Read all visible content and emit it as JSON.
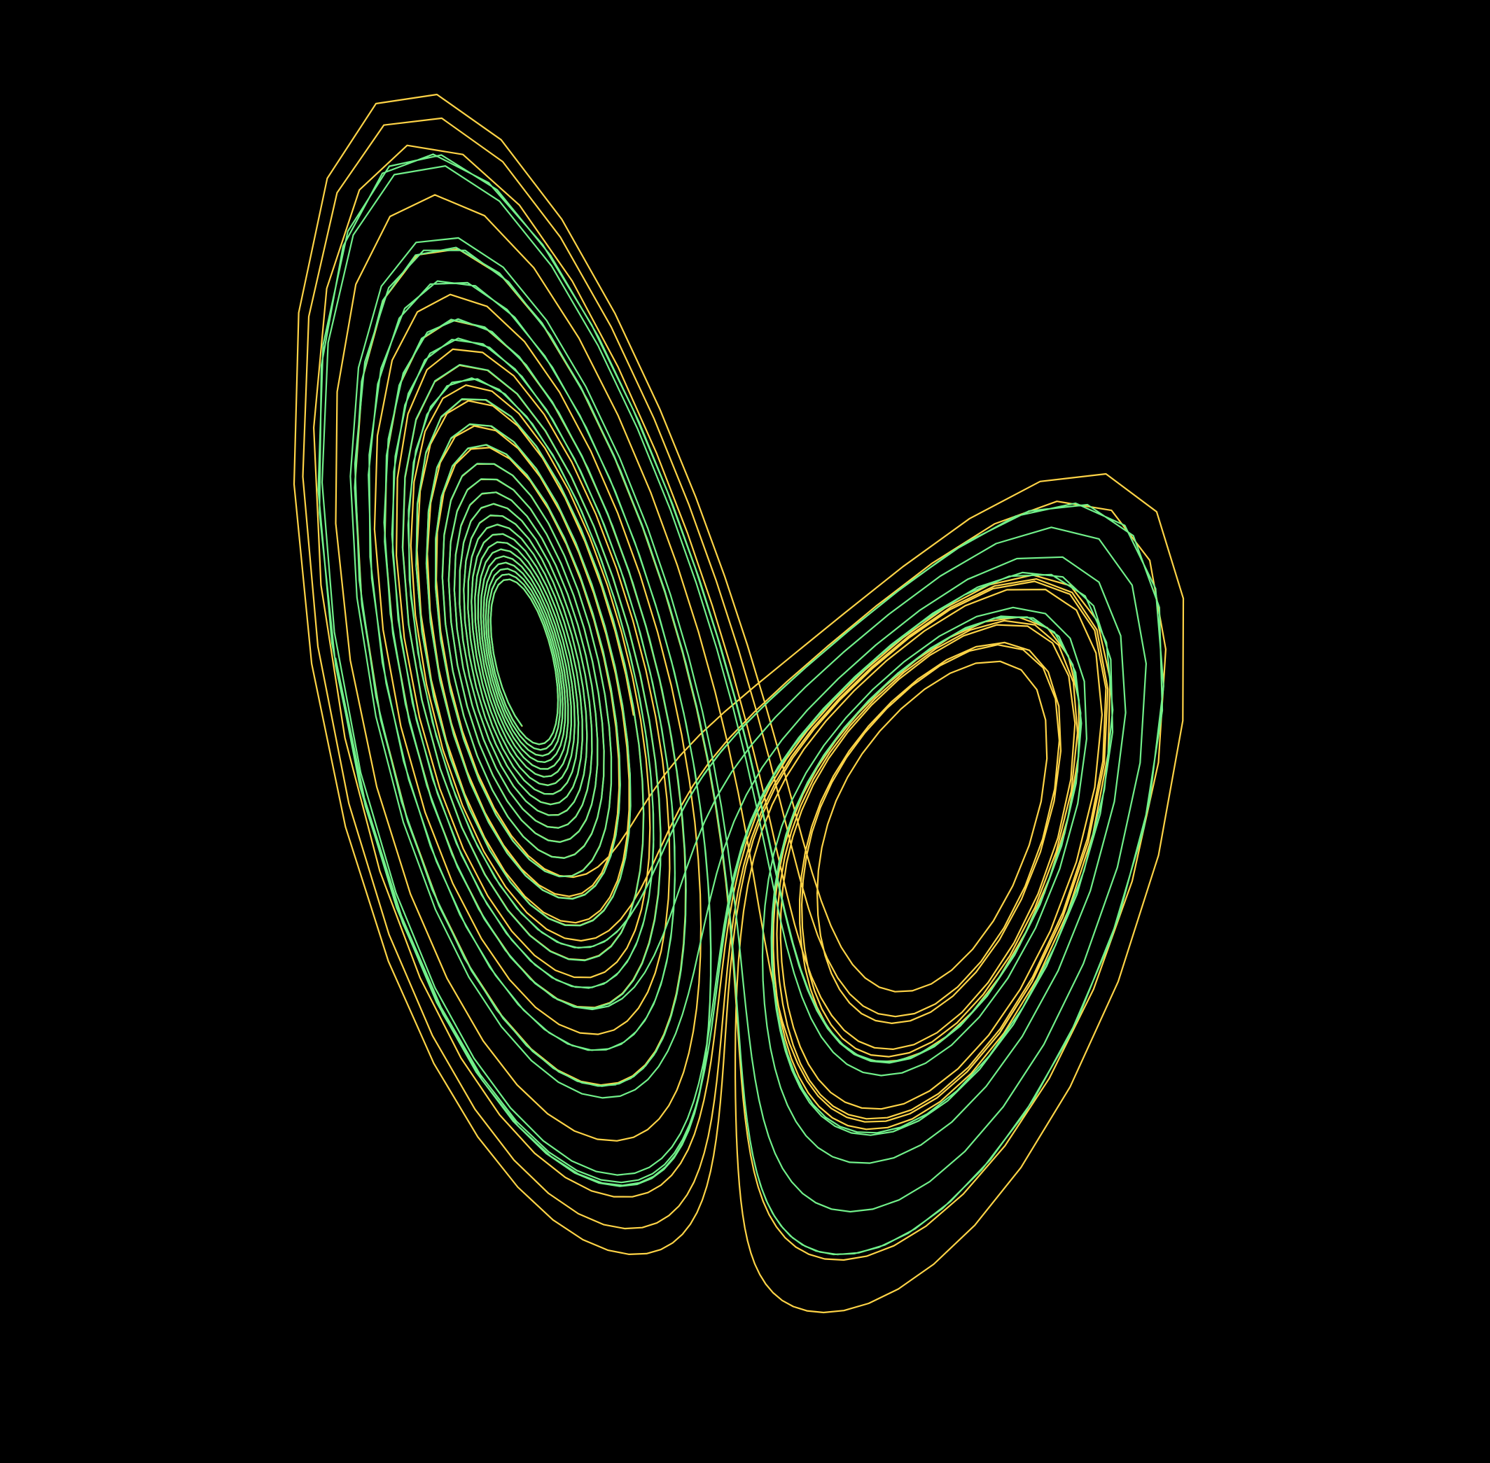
{
  "scene": {
    "subject": "lorenz-attractor",
    "background_color": "#000000",
    "trajectories": [
      {
        "color": "#ffd447",
        "initial": [
          1.0,
          1.0,
          1.0
        ]
      },
      {
        "color": "#71f08a",
        "initial": [
          1.02,
          1.0,
          1.0
        ]
      }
    ]
  }
}
